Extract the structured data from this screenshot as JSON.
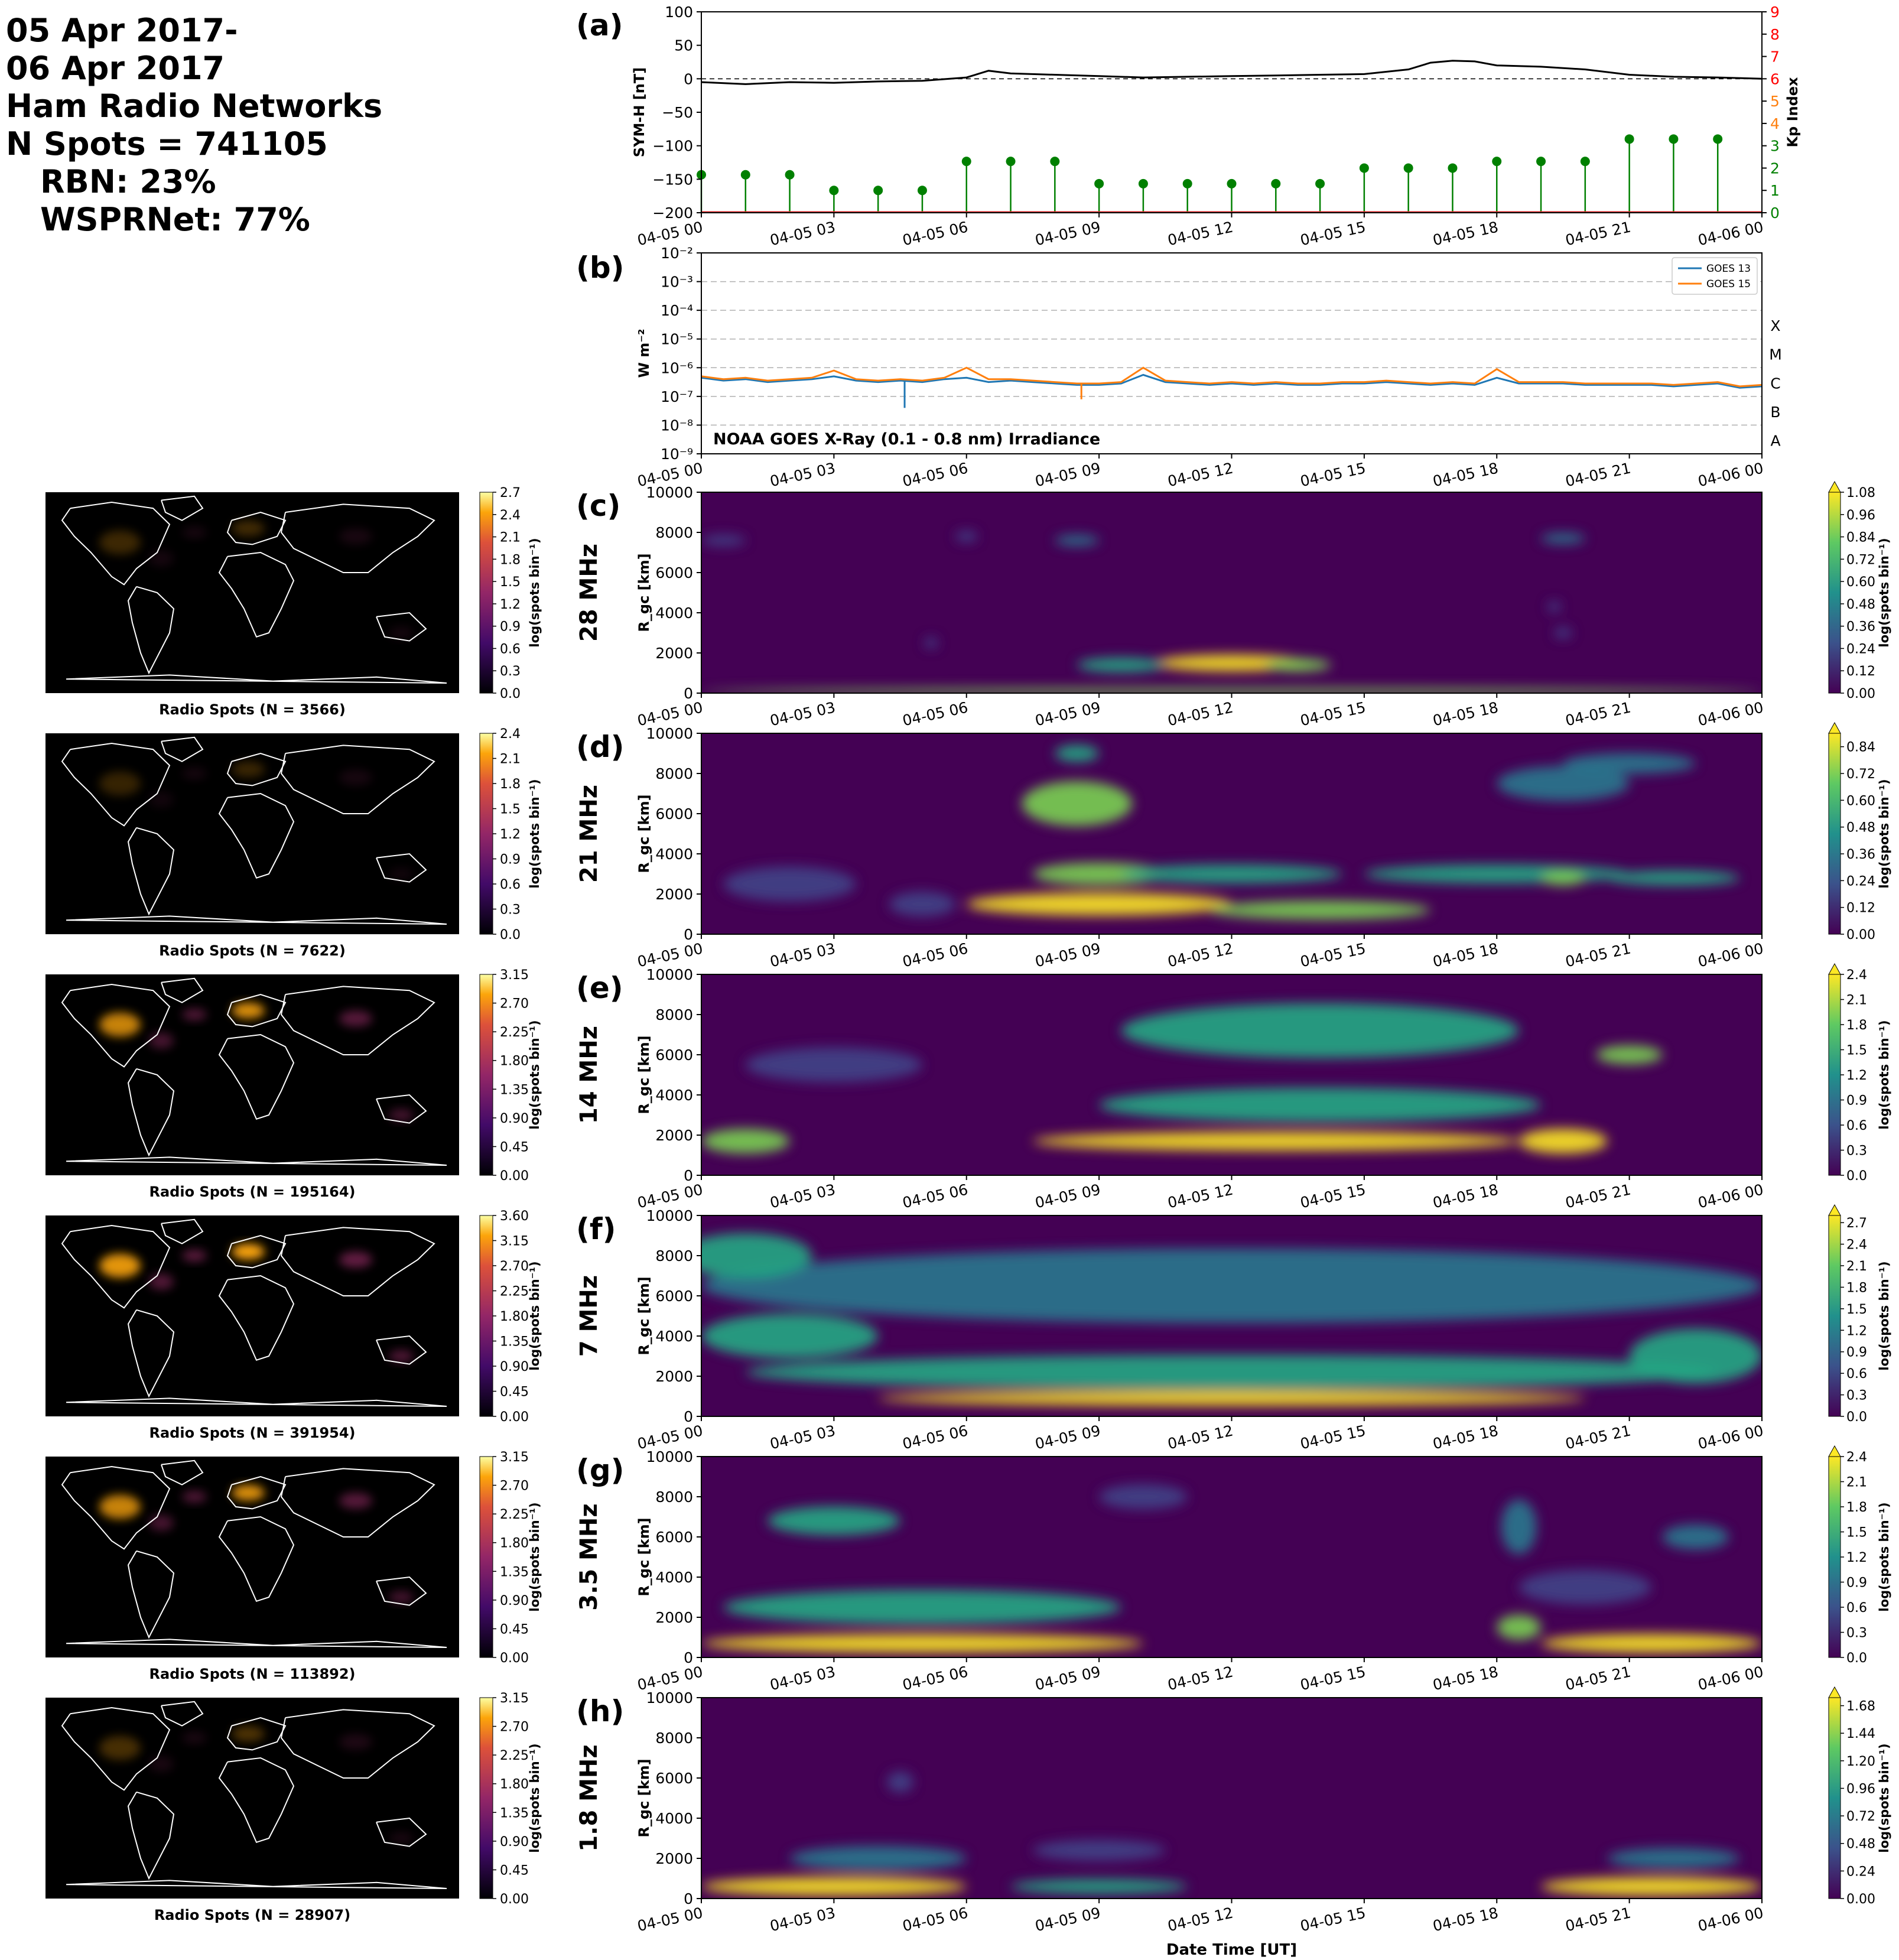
{
  "summary": {
    "line1": "05 Apr 2017-",
    "line2": "06 Apr 2017",
    "line3": "Ham Radio Networks",
    "line4": "N Spots = 741105",
    "line5": "RBN: 23%",
    "line6": "WSPRNet: 77%"
  },
  "time_ticks": [
    "04-05 00",
    "04-05 03",
    "04-05 06",
    "04-05 09",
    "04-05 12",
    "04-05 15",
    "04-05 18",
    "04-05 21",
    "04-06 00"
  ],
  "xlabel": "Date Time [UT]",
  "colors": {
    "symh": "#000000",
    "kp": "#008000",
    "goes13": "#1f77b4",
    "goes15": "#ff7f0e",
    "map_bg": "#000000",
    "coast": "#ffffff"
  },
  "chart_data": [
    {
      "type": "line",
      "panel": "(a)",
      "ylabel": "SYM-H [nT]",
      "y2label": "Kp Index",
      "ylim": [
        -200,
        100
      ],
      "y2lim": [
        0,
        9
      ],
      "yticks": [
        "100",
        "50",
        "0",
        "−50",
        "−100",
        "−150",
        "−200"
      ],
      "y2ticks": [
        "9",
        "8",
        "7",
        "6",
        "5",
        "4",
        "3",
        "2",
        "1",
        "0"
      ],
      "y2tick_colors": [
        "#ff0000",
        "#ff0000",
        "#ff0000",
        "#ff0000",
        "#ff7f0e",
        "#ff7f0e",
        "#008000",
        "#008000",
        "#008000",
        "#008000"
      ],
      "x_hours": [
        0,
        1,
        2,
        3,
        4,
        5,
        6,
        6.5,
        7,
        8,
        9,
        10,
        11,
        12,
        13,
        14,
        15,
        16,
        16.5,
        17,
        17.5,
        18,
        19,
        20,
        21,
        22,
        23,
        24
      ],
      "symh": [
        -5,
        -8,
        -5,
        -6,
        -4,
        -3,
        2,
        12,
        8,
        6,
        4,
        2,
        3,
        4,
        5,
        6,
        7,
        14,
        24,
        27,
        26,
        20,
        18,
        14,
        6,
        3,
        2,
        0
      ],
      "kp_hours": [
        0,
        1,
        2,
        3,
        4,
        5,
        6,
        7,
        8,
        9,
        10,
        11,
        12,
        13,
        14,
        15,
        16,
        17,
        18,
        19,
        20,
        21,
        22,
        23
      ],
      "kp": [
        1.7,
        1.7,
        1.7,
        1.0,
        1.0,
        1.0,
        2.3,
        2.3,
        2.3,
        1.3,
        1.3,
        1.3,
        1.3,
        1.3,
        1.3,
        2.0,
        2.0,
        2.0,
        2.3,
        2.3,
        2.3,
        3.3,
        3.3,
        3.3
      ]
    },
    {
      "type": "line",
      "panel": "(b)",
      "ylabel": "W m⁻²",
      "yscale": "log",
      "ylim_exp": [
        -9,
        -2
      ],
      "yticks": [
        "10⁻²",
        "10⁻³",
        "10⁻⁴",
        "10⁻⁵",
        "10⁻⁶",
        "10⁻⁷",
        "10⁻⁸",
        "10⁻⁹"
      ],
      "class_labels": [
        "X",
        "M",
        "C",
        "B",
        "A"
      ],
      "annotation": "NOAA GOES X-Ray (0.1 - 0.8 nm) Irradiance",
      "x_hours": [
        0,
        0.5,
        1,
        1.5,
        2,
        2.5,
        3,
        3.5,
        4,
        4.5,
        5,
        5.5,
        6,
        6.5,
        7,
        7.5,
        8,
        8.5,
        9,
        9.5,
        10,
        10.5,
        11,
        11.5,
        12,
        12.5,
        13,
        13.5,
        14,
        14.5,
        15,
        15.5,
        16,
        16.5,
        17,
        17.5,
        18,
        18.5,
        19,
        19.5,
        20,
        20.5,
        21,
        21.5,
        22,
        22.5,
        23,
        23.5,
        24
      ],
      "series": [
        {
          "name": "GOES 13",
          "log10_values": [
            -6.35,
            -6.45,
            -6.4,
            -6.5,
            -6.45,
            -6.4,
            -6.3,
            -6.45,
            -6.5,
            -6.45,
            -6.5,
            -6.4,
            -6.35,
            -6.5,
            -6.45,
            -6.5,
            -6.55,
            -6.6,
            -6.6,
            -6.55,
            -6.25,
            -6.5,
            -6.55,
            -6.6,
            -6.55,
            -6.6,
            -6.55,
            -6.6,
            -6.6,
            -6.55,
            -6.55,
            -6.5,
            -6.55,
            -6.6,
            -6.55,
            -6.6,
            -6.35,
            -6.55,
            -6.55,
            -6.55,
            -6.6,
            -6.6,
            -6.6,
            -6.6,
            -6.65,
            -6.6,
            -6.55,
            -6.7,
            -6.65
          ]
        },
        {
          "name": "GOES 15",
          "log10_values": [
            -6.3,
            -6.4,
            -6.35,
            -6.45,
            -6.4,
            -6.35,
            -6.1,
            -6.4,
            -6.45,
            -6.4,
            -6.45,
            -6.35,
            -6.0,
            -6.4,
            -6.4,
            -6.45,
            -6.5,
            -6.55,
            -6.55,
            -6.5,
            -6.0,
            -6.45,
            -6.5,
            -6.55,
            -6.5,
            -6.55,
            -6.5,
            -6.55,
            -6.55,
            -6.5,
            -6.5,
            -6.45,
            -6.5,
            -6.55,
            -6.5,
            -6.55,
            -6.05,
            -6.5,
            -6.5,
            -6.5,
            -6.55,
            -6.55,
            -6.55,
            -6.55,
            -6.6,
            -6.55,
            -6.5,
            -6.65,
            -6.6
          ]
        }
      ]
    },
    {
      "type": "heatmap",
      "panel": "(c)",
      "band": "28 MHz",
      "ylabel": "R_gc [km]",
      "ylim": [
        0,
        10000
      ],
      "yticks": [
        "10000",
        "8000",
        "6000",
        "4000",
        "2000",
        "0"
      ],
      "cbar_ticks": [
        "1.08",
        "0.96",
        "0.84",
        "0.72",
        "0.60",
        "0.48",
        "0.36",
        "0.24",
        "0.12",
        "0.00"
      ],
      "cbar_max": 1.08,
      "cbar_label": "log(spots bin⁻¹)",
      "map_caption": "Radio Spots (N = 3566)",
      "map_ticks": [
        "2.7",
        "2.4",
        "2.1",
        "1.8",
        "1.5",
        "1.2",
        "0.9",
        "0.6",
        "0.3",
        "0.0"
      ],
      "map_max": 2.7,
      "blobs": [
        [
          12,
          1500,
          3.5,
          600,
          0.95
        ],
        [
          13.5,
          1400,
          1.5,
          400,
          0.8
        ],
        [
          9.5,
          1400,
          2,
          500,
          0.55
        ],
        [
          0.5,
          7600,
          1,
          300,
          0.3
        ],
        [
          8.5,
          7600,
          1,
          300,
          0.35
        ],
        [
          19.5,
          7700,
          1,
          300,
          0.35
        ],
        [
          6,
          7800,
          0.5,
          300,
          0.25
        ],
        [
          19.5,
          3000,
          0.4,
          300,
          0.3
        ],
        [
          19.3,
          4300,
          0.3,
          300,
          0.25
        ],
        [
          5.2,
          2500,
          0.3,
          300,
          0.25
        ],
        [
          12,
          80,
          24,
          100,
          0.8
        ]
      ]
    },
    {
      "type": "heatmap",
      "panel": "(d)",
      "band": "21 MHz",
      "ylabel": "R_gc [km]",
      "ylim": [
        0,
        10000
      ],
      "yticks": [
        "10000",
        "8000",
        "6000",
        "4000",
        "2000",
        "0"
      ],
      "cbar_ticks": [
        "0.84",
        "0.72",
        "0.60",
        "0.48",
        "0.36",
        "0.24",
        "0.12",
        "0.00"
      ],
      "cbar_max": 0.9,
      "cbar_label": "log(spots bin⁻¹)",
      "map_caption": "Radio Spots (N = 7622)",
      "map_ticks": [
        "2.4",
        "2.1",
        "1.8",
        "1.5",
        "1.2",
        "0.9",
        "0.6",
        "0.3",
        "0.0"
      ],
      "map_max": 2.4,
      "blobs": [
        [
          9,
          1500,
          6,
          900,
          1.0
        ],
        [
          9,
          3000,
          3,
          900,
          0.85
        ],
        [
          14,
          1200,
          5,
          700,
          0.75
        ],
        [
          18,
          3000,
          6,
          700,
          0.6
        ],
        [
          19.5,
          2800,
          1,
          500,
          0.85
        ],
        [
          22,
          2800,
          3,
          500,
          0.6
        ],
        [
          8.5,
          6500,
          2.5,
          2000,
          0.7
        ],
        [
          8.5,
          9000,
          1,
          600,
          0.6
        ],
        [
          19.5,
          7500,
          3,
          1500,
          0.45
        ],
        [
          21,
          8500,
          3,
          800,
          0.35
        ],
        [
          2,
          2500,
          3,
          1500,
          0.3
        ],
        [
          5,
          1500,
          1.5,
          1000,
          0.3
        ],
        [
          12,
          3000,
          5,
          700,
          0.5
        ]
      ]
    },
    {
      "type": "heatmap",
      "panel": "(e)",
      "band": "14 MHz",
      "ylabel": "R_gc [km]",
      "ylim": [
        0,
        10000
      ],
      "yticks": [
        "10000",
        "8000",
        "6000",
        "4000",
        "2000",
        "0"
      ],
      "cbar_ticks": [
        "2.4",
        "2.1",
        "1.8",
        "1.5",
        "1.2",
        "0.9",
        "0.6",
        "0.3",
        "0.0"
      ],
      "cbar_max": 2.4,
      "cbar_label": "log(spots bin⁻¹)",
      "map_caption": "Radio Spots (N = 195164)",
      "map_ticks": [
        "3.15",
        "2.70",
        "2.25",
        "1.80",
        "1.35",
        "0.90",
        "0.45",
        "0.00"
      ],
      "map_max": 3.15,
      "blobs": [
        [
          13,
          1700,
          11,
          700,
          0.95
        ],
        [
          19.5,
          1700,
          2,
          1000,
          1.0
        ],
        [
          1,
          1700,
          2,
          1000,
          0.7
        ],
        [
          14,
          3500,
          10,
          1500,
          0.6
        ],
        [
          14,
          7200,
          9,
          2500,
          0.5
        ],
        [
          21,
          6000,
          1.5,
          700,
          0.75
        ],
        [
          3,
          5500,
          4,
          1500,
          0.3
        ]
      ]
    },
    {
      "type": "heatmap",
      "panel": "(f)",
      "band": "7 MHz",
      "ylabel": "R_gc [km]",
      "ylim": [
        0,
        10000
      ],
      "yticks": [
        "10000",
        "8000",
        "6000",
        "4000",
        "2000",
        "0"
      ],
      "cbar_ticks": [
        "2.7",
        "2.4",
        "2.1",
        "1.8",
        "1.5",
        "1.2",
        "0.9",
        "0.6",
        "0.3",
        "0.0"
      ],
      "cbar_max": 2.8,
      "cbar_label": "log(spots bin⁻¹)",
      "map_caption": "Radio Spots (N = 391954)",
      "map_ticks": [
        "3.60",
        "3.15",
        "2.70",
        "2.25",
        "1.80",
        "1.35",
        "0.90",
        "0.45",
        "0.00"
      ],
      "map_max": 3.6,
      "blobs": [
        [
          12,
          900,
          16,
          500,
          1.0
        ],
        [
          12,
          2200,
          22,
          1500,
          0.65
        ],
        [
          2,
          4000,
          4,
          2000,
          0.5
        ],
        [
          22.5,
          3000,
          3,
          2500,
          0.6
        ],
        [
          12,
          6500,
          24,
          3500,
          0.45
        ],
        [
          1,
          8000,
          3,
          2000,
          0.5
        ]
      ]
    },
    {
      "type": "heatmap",
      "panel": "(g)",
      "band": "3.5 MHz",
      "ylabel": "R_gc [km]",
      "ylim": [
        0,
        10000
      ],
      "yticks": [
        "10000",
        "8000",
        "6000",
        "4000",
        "2000",
        "0"
      ],
      "cbar_ticks": [
        "2.4",
        "2.1",
        "1.8",
        "1.5",
        "1.2",
        "0.9",
        "0.6",
        "0.3",
        "0.0"
      ],
      "cbar_max": 2.4,
      "cbar_label": "log(spots bin⁻¹)",
      "map_caption": "Radio Spots (N = 113892)",
      "map_ticks": [
        "3.15",
        "2.70",
        "2.25",
        "1.80",
        "1.35",
        "0.90",
        "0.45",
        "0.00"
      ],
      "map_max": 3.15,
      "blobs": [
        [
          5,
          700,
          10,
          700,
          0.95
        ],
        [
          21.5,
          700,
          5,
          700,
          0.95
        ],
        [
          18.5,
          1500,
          1,
          1000,
          0.8
        ],
        [
          5,
          2500,
          9,
          1500,
          0.55
        ],
        [
          3,
          6800,
          3,
          1200,
          0.5
        ],
        [
          18.5,
          6500,
          0.8,
          2500,
          0.4
        ],
        [
          22.5,
          6000,
          1.5,
          1000,
          0.35
        ],
        [
          10,
          8000,
          2,
          1000,
          0.3
        ],
        [
          20,
          3500,
          3,
          1500,
          0.3
        ]
      ]
    },
    {
      "type": "heatmap",
      "panel": "(h)",
      "band": "1.8 MHz",
      "ylabel": "R_gc [km]",
      "ylim": [
        0,
        10000
      ],
      "yticks": [
        "10000",
        "8000",
        "6000",
        "4000",
        "2000",
        "0"
      ],
      "cbar_ticks": [
        "1.68",
        "1.44",
        "1.20",
        "0.96",
        "0.72",
        "0.48",
        "0.24",
        "0.00"
      ],
      "cbar_max": 1.75,
      "cbar_label": "log(spots bin⁻¹)",
      "map_caption": "Radio Spots (N = 28907)",
      "map_ticks": [
        "3.15",
        "2.70",
        "2.25",
        "1.80",
        "1.35",
        "0.90",
        "0.45",
        "0.00"
      ],
      "map_max": 3.15,
      "blobs": [
        [
          3,
          600,
          6,
          700,
          1.0
        ],
        [
          21.5,
          600,
          5,
          700,
          0.9
        ],
        [
          9,
          600,
          4,
          500,
          0.55
        ],
        [
          4,
          2000,
          4,
          1000,
          0.35
        ],
        [
          9,
          2400,
          3,
          800,
          0.25
        ],
        [
          22,
          2000,
          3,
          800,
          0.4
        ],
        [
          4.5,
          5800,
          0.6,
          800,
          0.3
        ]
      ]
    }
  ]
}
